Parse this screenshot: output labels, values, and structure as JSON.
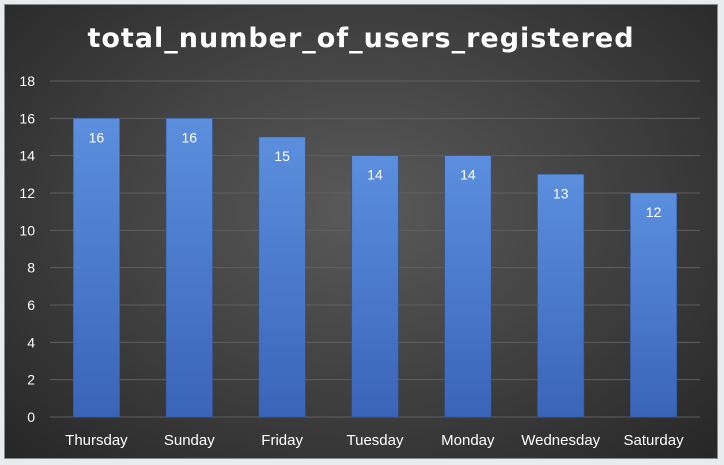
{
  "chart_data": {
    "type": "bar",
    "title": "total_number_of_users_registered",
    "categories": [
      "Thursday",
      "Sunday",
      "Friday",
      "Tuesday",
      "Monday",
      "Wednesday",
      "Saturday"
    ],
    "values": [
      16,
      16,
      15,
      14,
      14,
      13,
      12
    ],
    "ylim": [
      0,
      18
    ],
    "yticks": [
      0,
      2,
      4,
      6,
      8,
      10,
      12,
      14,
      16,
      18
    ],
    "grid": true,
    "data_labels": true,
    "bar_color": "#4472c4"
  }
}
